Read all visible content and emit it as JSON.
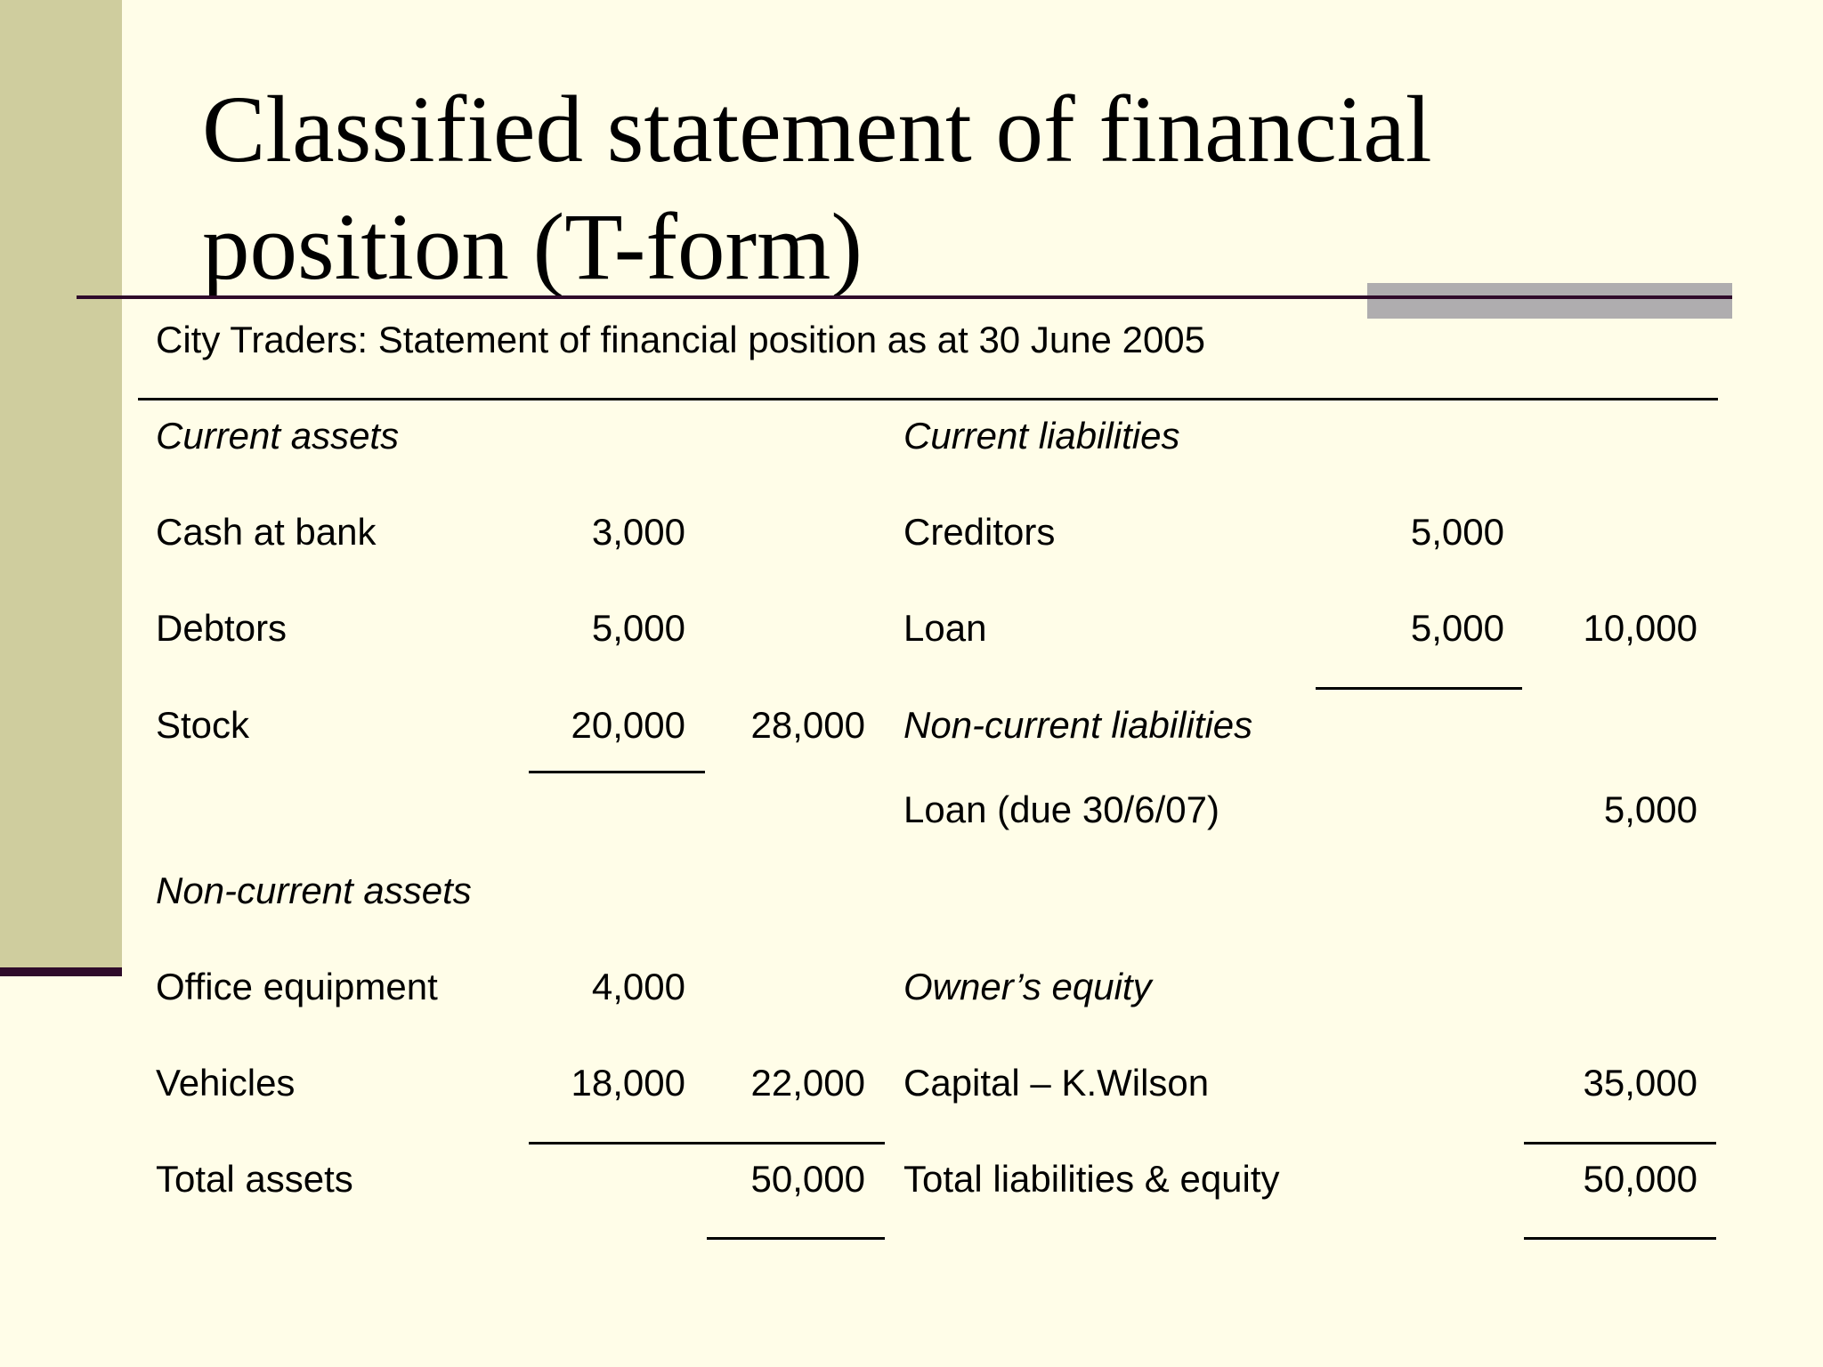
{
  "slide": {
    "title_line1": "Classified statement of financial",
    "title_line2": "position (T-form)",
    "subtitle": "City Traders: Statement of financial position as at 30 June 2005"
  },
  "left": {
    "current_assets_heading": "Current assets",
    "cash_label": "Cash at bank",
    "cash_value": "3,000",
    "debtors_label": "Debtors",
    "debtors_value": "5,000",
    "stock_label": "Stock",
    "stock_value": "20,000",
    "current_assets_total": "28,000",
    "non_current_assets_heading": "Non-current assets",
    "office_label": "Office equipment",
    "office_value": "4,000",
    "vehicles_label": "Vehicles",
    "vehicles_value": "18,000",
    "non_current_total": "22,000",
    "total_label": "Total assets",
    "total_value": "50,000"
  },
  "right": {
    "current_liabilities_heading": "Current liabilities",
    "creditors_label": "Creditors",
    "creditors_value": "5,000",
    "loan_label": "Loan",
    "loan_value": "5,000",
    "current_liabilities_total": "10,000",
    "non_current_liabilities_heading": "Non-current liabilities",
    "loan_due_label": "Loan (due 30/6/07)",
    "loan_due_value": "5,000",
    "owners_equity_heading": "Owner’s equity",
    "capital_label": "Capital – K.Wilson",
    "capital_value": "35,000",
    "total_label": "Total liabilities & equity",
    "total_value": "50,000"
  },
  "colors": {
    "background": "#fffde8",
    "side_bar": "#cfcd9e",
    "rule_dark": "#2f0b2b",
    "accent_gray": "#afadaf"
  }
}
